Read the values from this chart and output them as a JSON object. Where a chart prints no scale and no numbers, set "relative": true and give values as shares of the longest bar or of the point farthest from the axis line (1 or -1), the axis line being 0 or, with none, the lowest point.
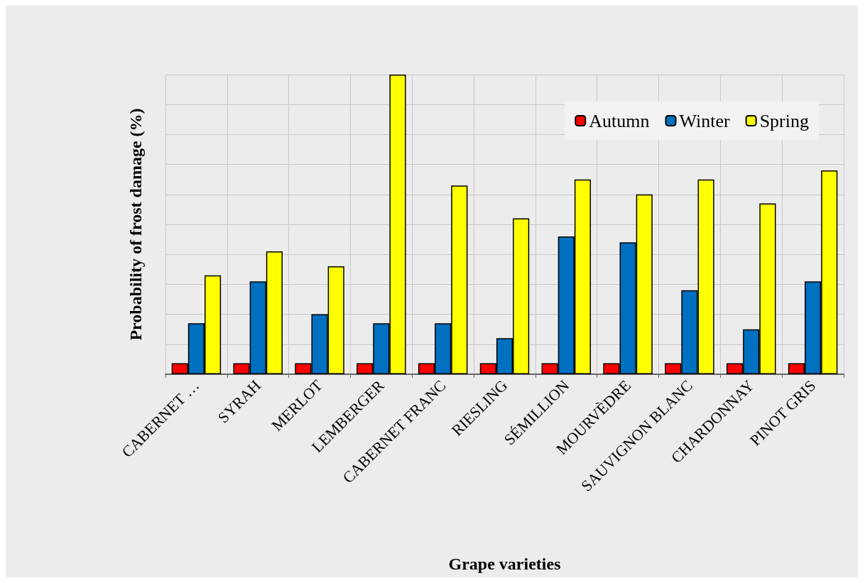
{
  "chart_data": {
    "type": "bar",
    "relative": true,
    "xlabel": "Grape varieties",
    "ylabel": "Probability of frost damage (%)",
    "categories": [
      "CABERNET …",
      "SYRAH",
      "MERLOT",
      "LEMBERGER",
      "CABERNET FRANC",
      "RIESLING",
      "SÉMILLION",
      "MOURVÈDRE",
      "SAUVIGNON BLANC",
      "CHARDONNAY",
      "PINOT GRIS"
    ],
    "series": [
      {
        "name": "Autumn",
        "color": "#ff0000",
        "values": [
          0.037,
          0.037,
          0.037,
          0.037,
          0.037,
          0.037,
          0.037,
          0.037,
          0.037,
          0.037,
          0.037
        ]
      },
      {
        "name": "Winter",
        "color": "#0070c0",
        "values": [
          0.17,
          0.31,
          0.2,
          0.17,
          0.17,
          0.12,
          0.46,
          0.44,
          0.28,
          0.15,
          0.31
        ]
      },
      {
        "name": "Spring",
        "color": "#ffff00",
        "values": [
          0.33,
          0.41,
          0.36,
          1,
          0.63,
          0.52,
          0.65,
          0.6,
          0.65,
          0.57,
          0.68
        ]
      }
    ],
    "grid": true,
    "legend": "top right"
  }
}
